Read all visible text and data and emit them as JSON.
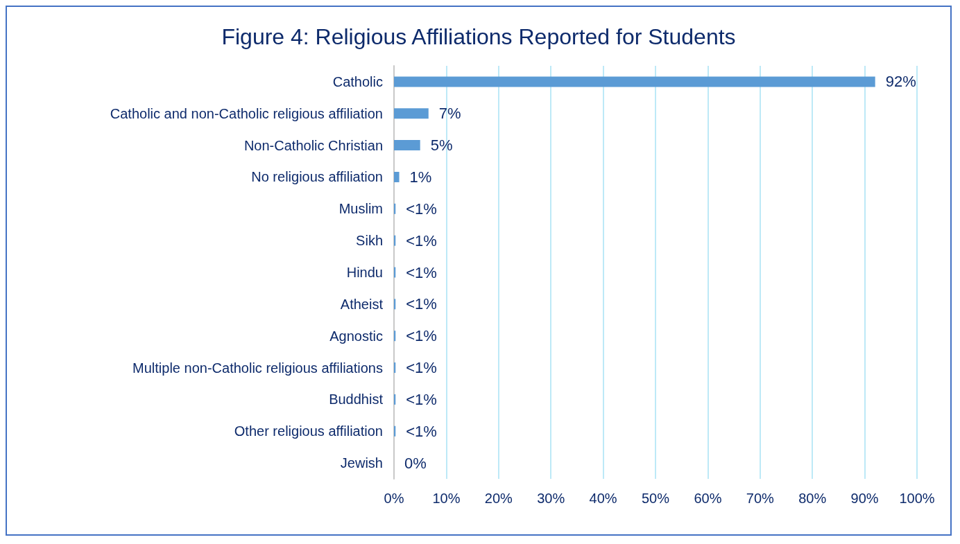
{
  "chart_data": {
    "type": "bar",
    "orientation": "horizontal",
    "title": "Figure 4: Religious Affiliations Reported for Students",
    "categories": [
      "Catholic",
      "Catholic and non-Catholic religious affiliation",
      "Non-Catholic Christian",
      "No religious affiliation",
      "Muslim",
      "Sikh",
      "Hindu",
      "Atheist",
      "Agnostic",
      "Multiple non-Catholic religious affiliations",
      "Buddhist",
      "Other religious affiliation",
      "Jewish"
    ],
    "values": [
      92,
      6.6,
      5,
      1,
      0.3,
      0.3,
      0.3,
      0.3,
      0.3,
      0.3,
      0.3,
      0.3,
      0
    ],
    "value_labels": [
      "92%",
      "7%",
      "5%",
      "1%",
      "<1%",
      "<1%",
      "<1%",
      "<1%",
      "<1%",
      "<1%",
      "<1%",
      "<1%",
      "0%"
    ],
    "color": "#5b9bd5",
    "xlim": [
      0,
      100
    ],
    "xticks": [
      {
        "value": 0,
        "label": "0%"
      },
      {
        "value": 10,
        "label": "10%"
      },
      {
        "value": 20,
        "label": "20%"
      },
      {
        "value": 30,
        "label": "30%"
      },
      {
        "value": 40,
        "label": "40%"
      },
      {
        "value": 50,
        "label": "50%"
      },
      {
        "value": 60,
        "label": "60%"
      },
      {
        "value": 70,
        "label": "70%"
      },
      {
        "value": 80,
        "label": "80%"
      },
      {
        "value": 90,
        "label": "90%"
      },
      {
        "value": 100,
        "label": "100%"
      }
    ],
    "grid": "x"
  }
}
